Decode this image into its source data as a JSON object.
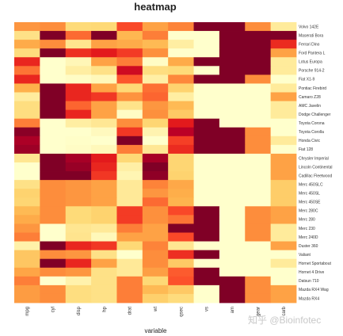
{
  "chart_data": {
    "type": "heatmap",
    "title": "heatmap",
    "xlabel": "variable",
    "ylabel": "",
    "columns": [
      "mpg",
      "cyl",
      "disp",
      "hp",
      "drat",
      "wt",
      "qsec",
      "vs",
      "am",
      "gear",
      "carb"
    ],
    "rows": [
      "Volvo 142E",
      "Maserati Bora",
      "Ferrari Dino",
      "Ford Pantera L",
      "Lotus Europa",
      "Porsche 914-2",
      "Fiat X1-9",
      "Pontiac Firebird",
      "Camaro Z28",
      "AMC Javelin",
      "Dodge Challenger",
      "Toyota Corona",
      "Toyota Corolla",
      "Honda Civic",
      "Fiat 128",
      "Chrysler Imperial",
      "Lincoln Continental",
      "Cadillac Fleetwood",
      "Merc 450SLC",
      "Merc 450SL",
      "Merc 450SE",
      "Merc 280C",
      "Merc 280",
      "Merc 230",
      "Merc 240D",
      "Duster 360",
      "Valiant",
      "Hornet Sportabout",
      "Hornet 4 Drive",
      "Datsun 710",
      "Mazda RX4 Wag",
      "Mazda RX4"
    ],
    "values": [
      [
        0.47,
        0.5,
        0.24,
        0.25,
        0.64,
        0.43,
        0.52,
        1,
        1,
        0.5,
        0.14
      ],
      [
        0.2,
        1,
        0.57,
        1,
        0.36,
        0.53,
        0,
        0,
        1,
        1,
        1
      ],
      [
        0.4,
        0.5,
        0.18,
        0.43,
        0.4,
        0.35,
        0.12,
        0,
        1,
        1,
        0.71
      ],
      [
        0.23,
        1,
        0.7,
        0.75,
        0.67,
        0.49,
        0,
        0,
        1,
        1,
        0.43
      ],
      [
        0.72,
        0,
        0.06,
        0.43,
        0.53,
        0.02,
        0.4,
        1,
        1,
        1,
        0.14
      ],
      [
        0.55,
        0,
        0.12,
        0.2,
        0.82,
        0.22,
        0.24,
        0,
        1,
        1,
        0.14
      ],
      [
        0.72,
        0,
        0.02,
        0.05,
        0.61,
        0.11,
        0.51,
        1,
        1,
        0.5,
        0
      ],
      [
        0.38,
        1,
        0.72,
        0.43,
        0.25,
        0.56,
        0.27,
        0,
        0,
        0,
        0.14
      ],
      [
        0.13,
        1,
        0.72,
        0.68,
        0.48,
        0.58,
        0.12,
        0,
        0,
        0,
        0.43
      ],
      [
        0.22,
        1,
        0.58,
        0.43,
        0.19,
        0.47,
        0.35,
        0,
        0,
        0,
        0.14
      ],
      [
        0.22,
        1,
        0.72,
        0.43,
        0.02,
        0.49,
        0.3,
        0,
        0,
        0,
        0.14
      ],
      [
        0.53,
        0,
        0.12,
        0.16,
        0.5,
        0.26,
        0.75,
        1,
        0,
        0,
        0
      ],
      [
        0.98,
        0,
        0,
        0.04,
        0.68,
        0.08,
        0.88,
        1,
        1,
        0.5,
        0
      ],
      [
        0.91,
        0,
        0.01,
        0,
        1,
        0,
        0.66,
        1,
        1,
        0.5,
        0.14
      ],
      [
        0.94,
        0,
        0.02,
        0.05,
        0.53,
        0.16,
        0.71,
        1,
        1,
        0.5,
        0
      ],
      [
        0.17,
        1,
        0.92,
        0.75,
        0.25,
        0.92,
        0.26,
        0,
        0,
        0,
        0.43
      ],
      [
        0,
        1,
        0.95,
        0.72,
        0.11,
        1,
        0.26,
        0,
        0,
        0,
        0.43
      ],
      [
        0,
        1,
        1,
        0.68,
        0.07,
        0.97,
        0.27,
        0,
        0,
        0,
        0.43
      ],
      [
        0.2,
        0.5,
        0.47,
        0.43,
        0.15,
        0.52,
        0.41,
        0,
        0,
        0,
        0.29
      ],
      [
        0.27,
        0.5,
        0.47,
        0.43,
        0.15,
        0.47,
        0.39,
        0,
        0,
        0,
        0.29
      ],
      [
        0.26,
        0.5,
        0.47,
        0.43,
        0.15,
        0.57,
        0.37,
        0,
        0,
        0,
        0.29
      ],
      [
        0.35,
        0.5,
        0.24,
        0.27,
        0.67,
        0.49,
        0.64,
        1,
        0,
        0.5,
        0.43
      ],
      [
        0.4,
        0.5,
        0.24,
        0.27,
        0.67,
        0.49,
        0.55,
        1,
        0,
        0.5,
        0.43
      ],
      [
        0.47,
        0,
        0.17,
        0.15,
        0.53,
        0.43,
        1,
        1,
        0,
        0.5,
        0.14
      ],
      [
        0.53,
        0,
        0.18,
        0.05,
        0.43,
        0.43,
        0.64,
        1,
        0,
        0.5,
        0.14
      ],
      [
        0.1,
        1,
        0.72,
        0.68,
        0.25,
        0.52,
        0.17,
        0,
        0,
        0,
        0.43
      ],
      [
        0.31,
        0.5,
        0.47,
        0.2,
        0,
        0.5,
        0.7,
        1,
        0,
        0,
        0
      ],
      [
        0.31,
        1,
        0.72,
        0.43,
        0.15,
        0.5,
        0.3,
        0,
        0,
        0,
        0.14
      ],
      [
        0.42,
        0.5,
        0.47,
        0.2,
        0.15,
        0.44,
        0.6,
        1,
        0,
        0,
        0
      ],
      [
        0.53,
        0,
        0.09,
        0.2,
        0.53,
        0.25,
        0.62,
        1,
        1,
        0.5,
        0
      ],
      [
        0.45,
        0.5,
        0.22,
        0.2,
        0.53,
        0.35,
        0.3,
        0,
        1,
        0.5,
        0.43
      ],
      [
        0.45,
        0.5,
        0.22,
        0.2,
        0.53,
        0.28,
        0.23,
        0,
        1,
        0.5,
        0.43
      ]
    ],
    "color_scale": [
      "#FFFFCC",
      "#FFEDA0",
      "#FED976",
      "#FEB24C",
      "#FD8D3C",
      "#FC4E2A",
      "#E31A1C",
      "#BD0026",
      "#800026"
    ],
    "legend": "none"
  },
  "watermark": "知乎 @Bioinfotec"
}
